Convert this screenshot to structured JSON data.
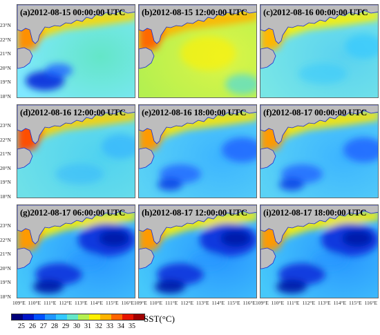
{
  "panels": [
    {
      "title": "(a)2012-08-15 00:00:00 UTC",
      "regime": "warm-cool-sw"
    },
    {
      "title": "(b)2012-08-15 12:00:00 UTC",
      "regime": "warm"
    },
    {
      "title": "(c)2012-08-16 00:00:00 UTC",
      "regime": "mild"
    },
    {
      "title": "(d)2012-08-16 12:00:00 UTC",
      "regime": "mild-warm"
    },
    {
      "title": "(e)2012-08-16 18:00:00 UTC",
      "regime": "cool"
    },
    {
      "title": "(f)2012-08-17 00:00:00 UTC",
      "regime": "cool"
    },
    {
      "title": "(g)2012-08-17 06:00:00 UTC",
      "regime": "cold"
    },
    {
      "title": "(h)2012-08-17 12:00:00 UTC",
      "regime": "cold"
    },
    {
      "title": "(i)2012-08-17 18:00:00 UTC",
      "regime": "cold"
    }
  ],
  "lat_ticks": [
    "23°N",
    "22°N",
    "21°N",
    "20°N",
    "19°N",
    "18°N"
  ],
  "lon_ticks": [
    "109°E",
    "110°E",
    "111°E",
    "112°E",
    "113°E",
    "114°E",
    "115°E",
    "116°E"
  ],
  "colorbar": {
    "ticks": [
      "25",
      "26",
      "27",
      "28",
      "29",
      "30",
      "31",
      "32",
      "33",
      "34",
      "35"
    ],
    "colors": [
      "#00007a",
      "#0014c8",
      "#0050ff",
      "#1e96ff",
      "#32c8ff",
      "#64e6c8",
      "#b4f050",
      "#fff000",
      "#ffb400",
      "#ff6400",
      "#e61400",
      "#a00000"
    ],
    "label": "SST(°C)"
  },
  "colors": {
    "land": "#bdbdbd",
    "coastline": "#1a2ccf"
  }
}
